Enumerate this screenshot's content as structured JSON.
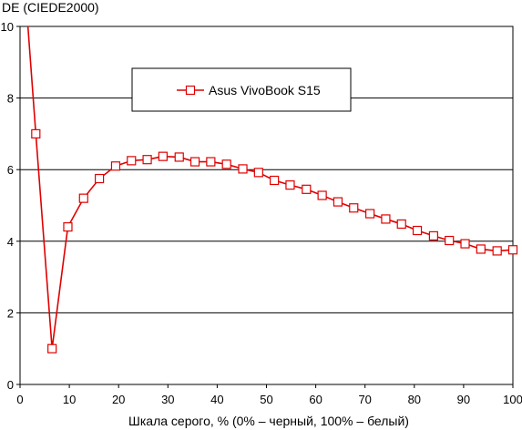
{
  "chart_data": {
    "type": "line",
    "title": "",
    "ylabel": "DE (CIEDE2000)",
    "xlabel": "Шкала серого, % (0% – черный, 100% – белый)",
    "xlim": [
      0,
      100
    ],
    "ylim": [
      0,
      10
    ],
    "x_ticks": [
      0,
      10,
      20,
      30,
      40,
      50,
      60,
      70,
      80,
      90,
      100
    ],
    "y_ticks": [
      0,
      2,
      4,
      6,
      8,
      10
    ],
    "grid": "horizontal",
    "legend_position": "top-center",
    "series": [
      {
        "name": "Asus VivoBook S15",
        "color": "#e00000",
        "marker": "open-square",
        "line_start": {
          "x": 1.6,
          "y": 10.0
        },
        "x": [
          3.2,
          6.5,
          9.7,
          12.9,
          16.1,
          19.4,
          22.6,
          25.8,
          29.0,
          32.3,
          35.5,
          38.7,
          41.9,
          45.2,
          48.4,
          51.6,
          54.8,
          58.1,
          61.3,
          64.5,
          67.7,
          71.0,
          74.2,
          77.4,
          80.6,
          83.9,
          87.1,
          90.3,
          93.5,
          96.8,
          100.0
        ],
        "values": [
          7.0,
          1.0,
          4.4,
          5.2,
          5.75,
          6.1,
          6.25,
          6.28,
          6.37,
          6.35,
          6.22,
          6.22,
          6.15,
          6.02,
          5.92,
          5.7,
          5.57,
          5.45,
          5.28,
          5.1,
          4.93,
          4.77,
          4.62,
          4.48,
          4.3,
          4.15,
          4.02,
          3.93,
          3.78,
          3.73,
          3.76
        ]
      }
    ]
  }
}
